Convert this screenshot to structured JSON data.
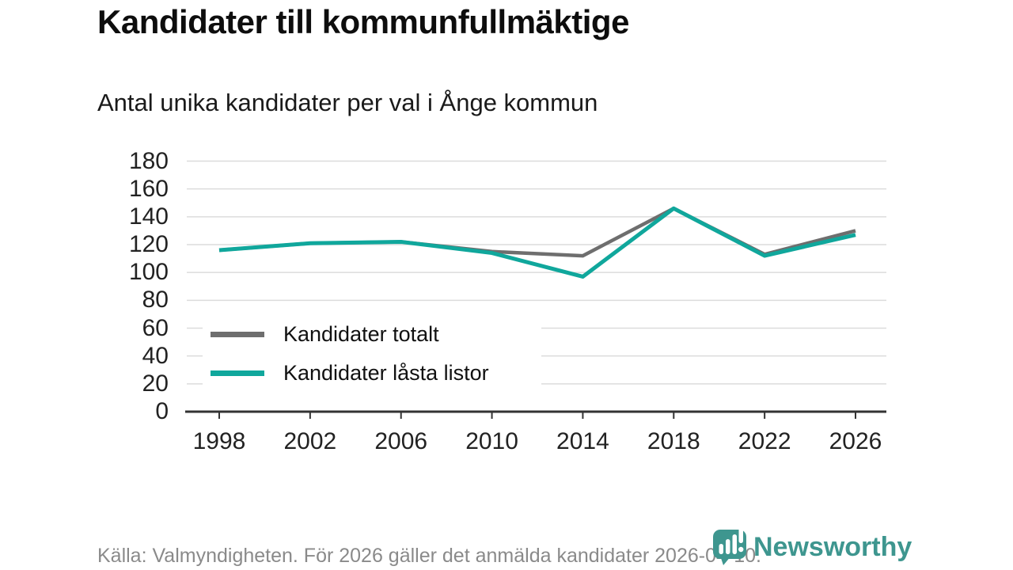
{
  "header": {
    "title": "Kandidater till kommunfullmäktige",
    "subtitle": "Antal unika kandidater per val i Ånge kommun"
  },
  "chart_data": {
    "type": "line",
    "title": "Kandidater till kommunfullmäktige",
    "subtitle": "Antal unika kandidater per val i Ånge kommun",
    "categories": [
      "1998",
      "2002",
      "2006",
      "2010",
      "2014",
      "2018",
      "2022",
      "2026"
    ],
    "series": [
      {
        "name": "Kandidater totalt",
        "color": "#6e6e6e",
        "values": [
          116,
          121,
          122,
          115,
          112,
          146,
          113,
          130
        ]
      },
      {
        "name": "Kandidater låsta listor",
        "color": "#10a79c",
        "values": [
          116,
          121,
          122,
          114,
          97,
          146,
          112,
          127
        ]
      }
    ],
    "xlabel": "",
    "ylabel": "",
    "ylim": [
      0,
      180
    ],
    "ytick_step": 20,
    "grid": true,
    "legend_position": "inside-left"
  },
  "footer": {
    "source_text": "Källa: Valmyndigheten. För 2026 gäller det anmälda kandidater 2026-04-10.",
    "brand_name": "Newsworthy"
  },
  "colors": {
    "accent_teal": "#10a79c",
    "line_gray": "#6e6e6e",
    "gridline": "#dcdcdc",
    "axis": "#333333",
    "tick_text": "#222222",
    "footer_text": "#8a8a8a",
    "brand_teal": "#3e968f"
  }
}
